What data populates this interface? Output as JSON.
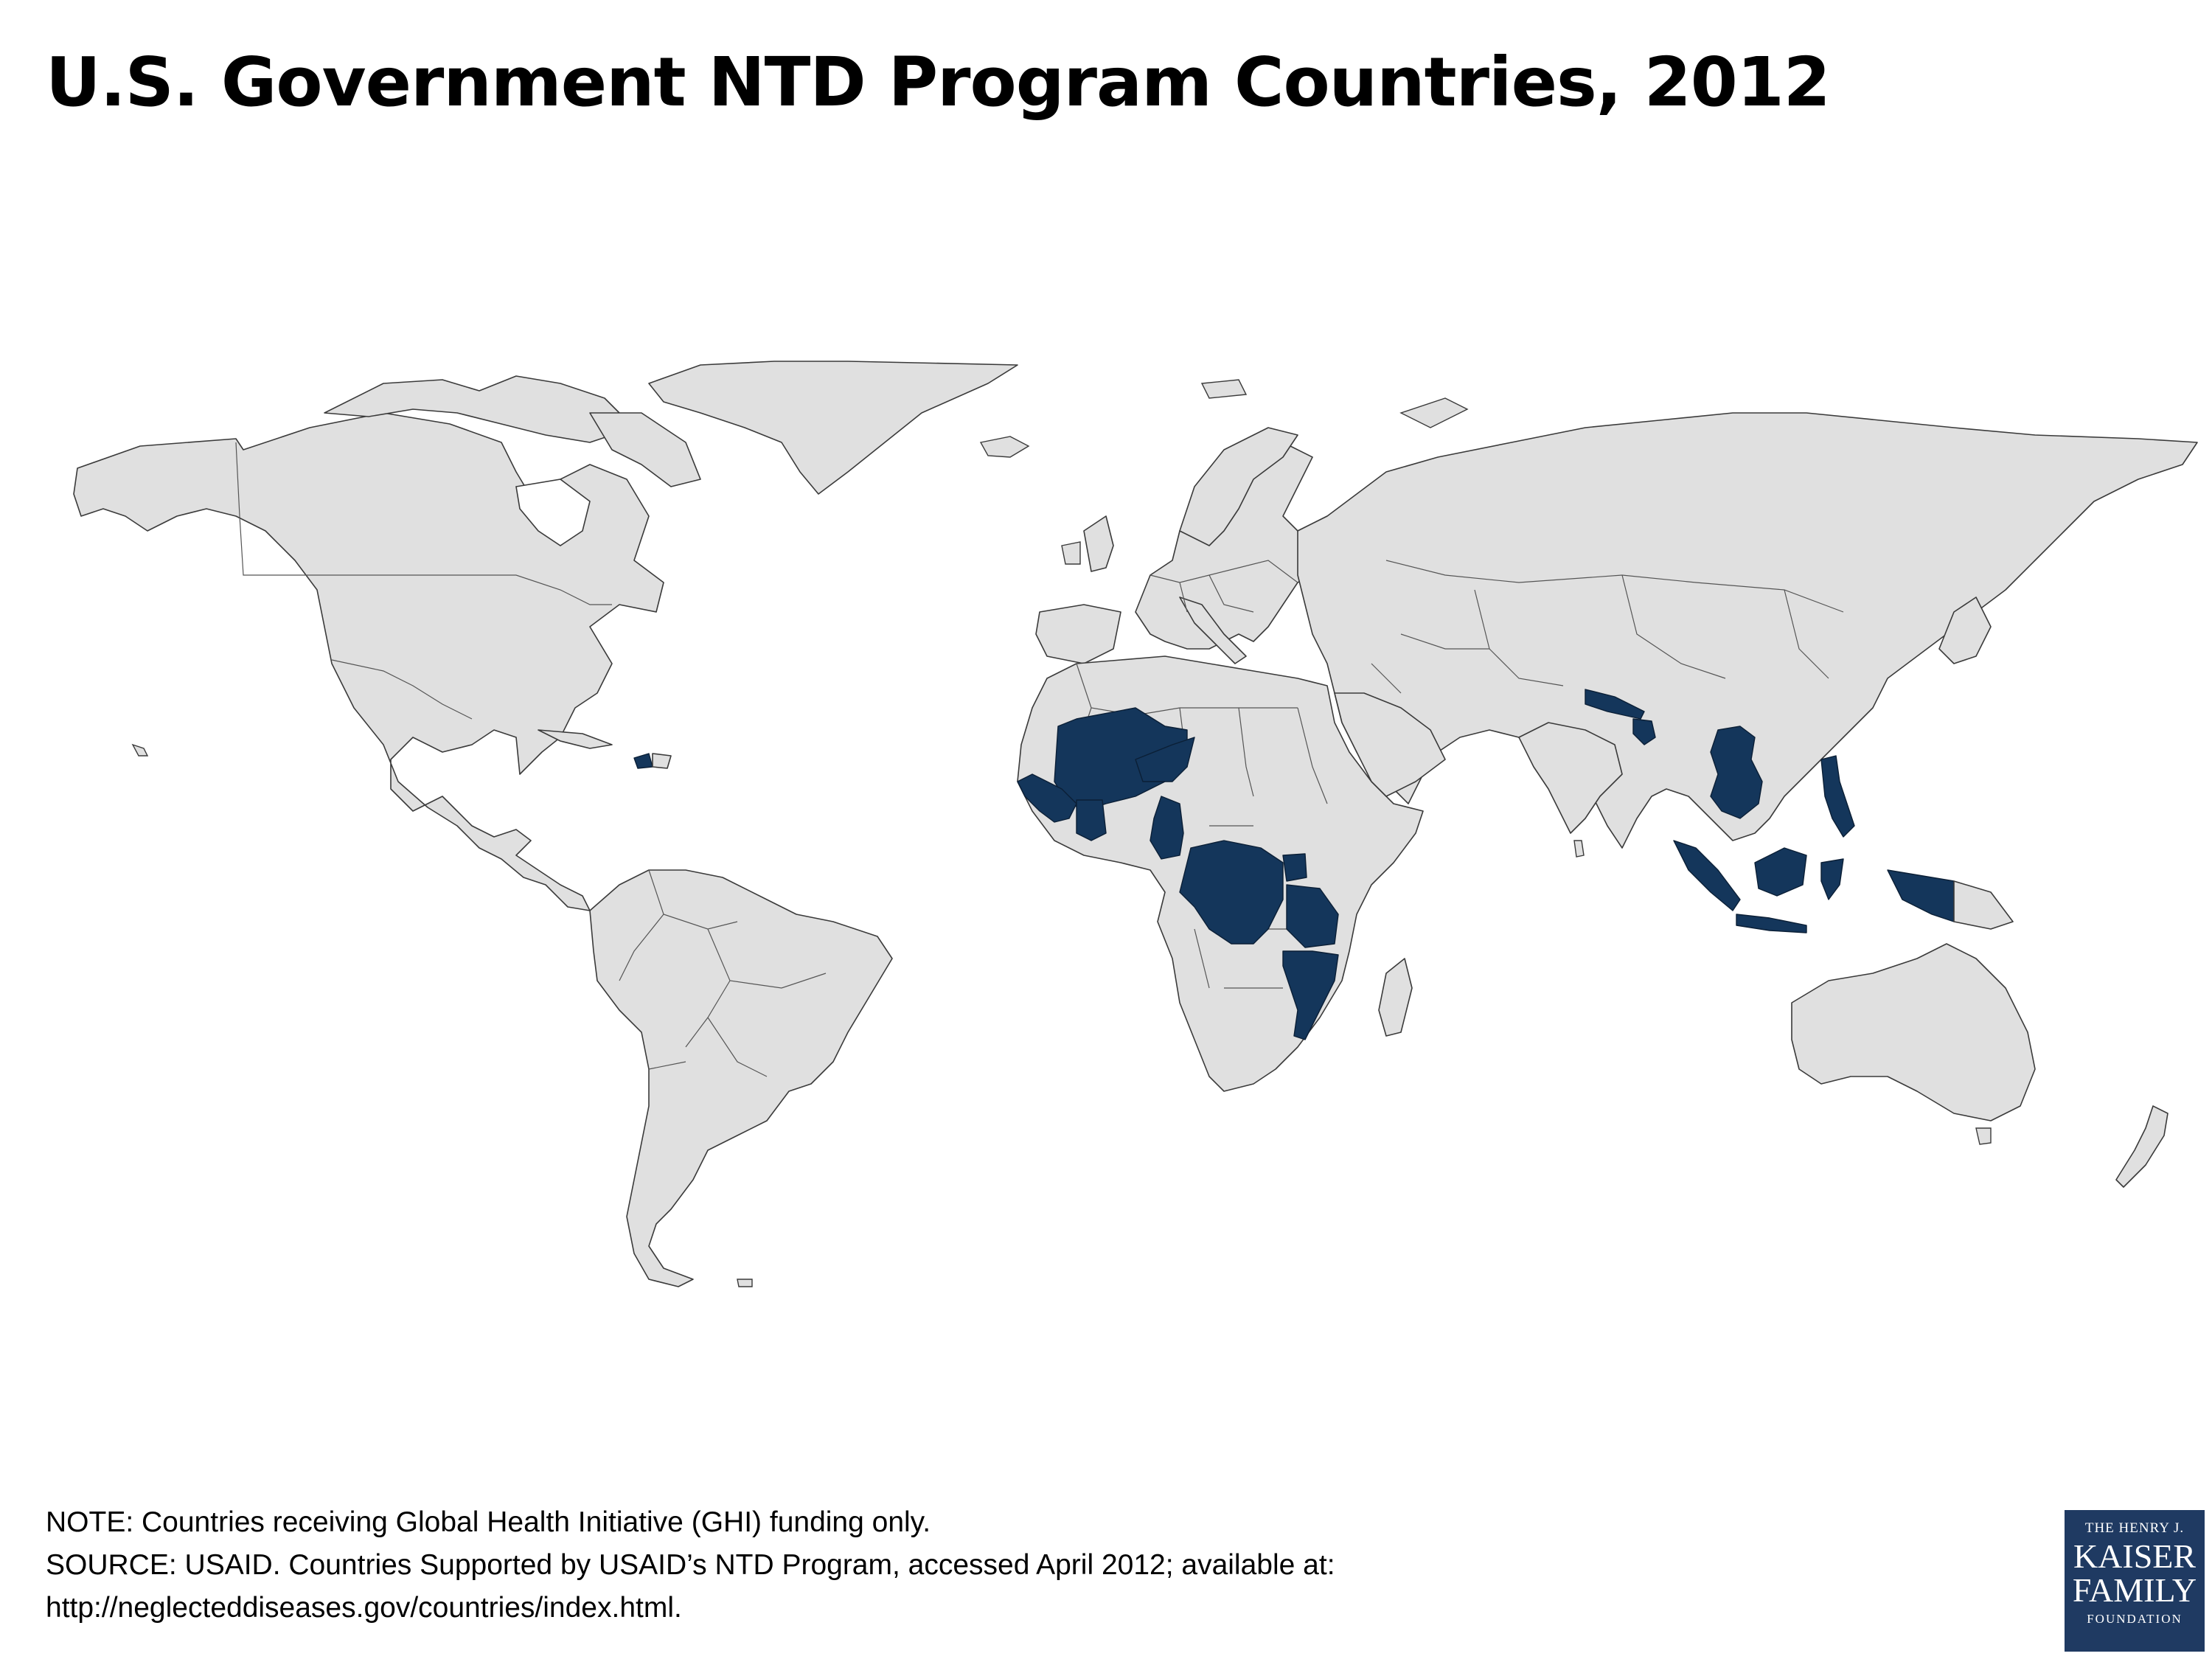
{
  "title": "U.S. Government NTD Program Countries, 2012",
  "map": {
    "projection": "world equirectangular",
    "colors": {
      "land": "#e0e0e0",
      "program_country": "#14365b",
      "border": "#3a3a3a",
      "background": "#ffffff"
    },
    "highlighted_countries": [
      "Haiti",
      "Senegal",
      "Guinea-Bissau",
      "Guinea",
      "Sierra Leone",
      "Mali",
      "Burkina Faso",
      "Niger",
      "Ghana",
      "Togo",
      "Cameroon",
      "Democratic Republic of the Congo",
      "Uganda",
      "Tanzania",
      "Malawi",
      "Mozambique",
      "Nepal",
      "Bangladesh",
      "Vietnam",
      "Cambodia",
      "Laos",
      "Philippines",
      "Indonesia"
    ]
  },
  "notes": {
    "note": "NOTE: Countries receiving Global Health Initiative (GHI) funding only.",
    "source": "SOURCE:  USAID. Countries Supported by USAID’s NTD Program, accessed April 2012; available at:",
    "url": "http://neglecteddiseases.gov/countries/index.html."
  },
  "logo": {
    "line1": "THE HENRY J.",
    "line2": "KAISER",
    "line3": "FAMILY",
    "line4": "FOUNDATION"
  }
}
